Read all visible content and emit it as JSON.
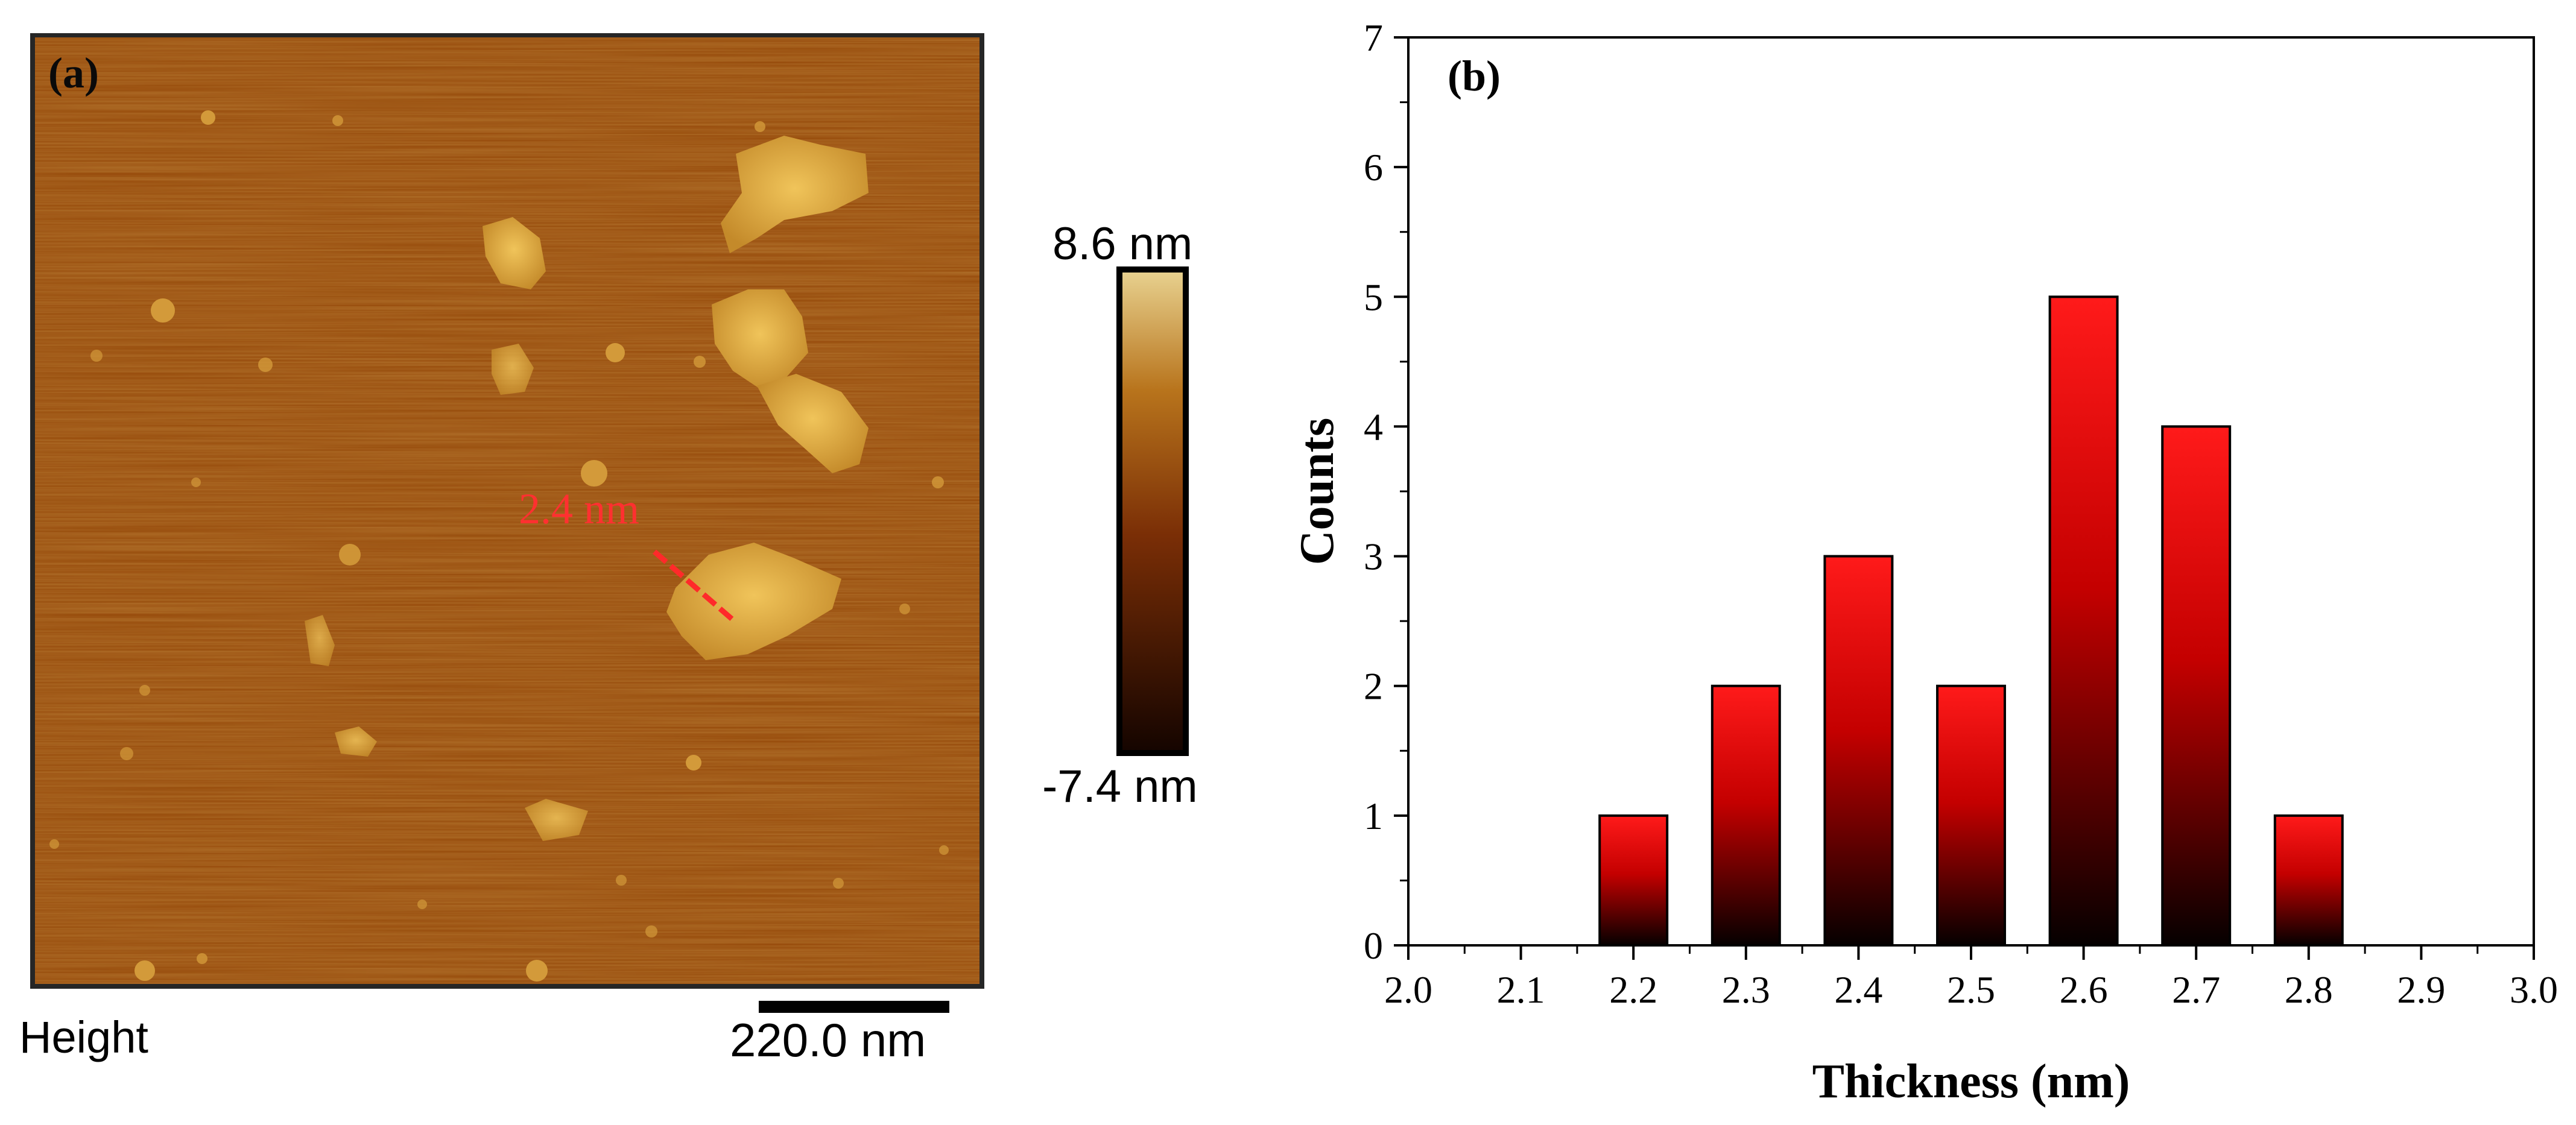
{
  "panel_a": {
    "label": "(a)",
    "channel_label": "Height",
    "scalebar_label": "220.0 nm",
    "measurement_label": "2.4 nm",
    "colorbar_max_label": "8.6 nm",
    "colorbar_min_label": "-7.4 nm",
    "colors": {
      "substrate": "#9a4a08",
      "flake": "#d9a640",
      "measure_line": "#ff2a2a",
      "colorbar_top": "#e8d290",
      "colorbar_bottom": "#140400"
    }
  },
  "chart_data": {
    "type": "bar",
    "panel_label": "(b)",
    "xlabel": "Thickness (nm)",
    "ylabel": "Counts",
    "categories": [
      "2.2",
      "2.3",
      "2.4",
      "2.5",
      "2.6",
      "2.7",
      "2.8"
    ],
    "x": [
      2.2,
      2.3,
      2.4,
      2.5,
      2.6,
      2.7,
      2.8
    ],
    "values": [
      1,
      2,
      3,
      2,
      5,
      4,
      1
    ],
    "xlim": [
      2.0,
      3.0
    ],
    "ylim": [
      0,
      7
    ],
    "xticks": [
      "2.0",
      "2.1",
      "2.2",
      "2.3",
      "2.4",
      "2.5",
      "2.6",
      "2.7",
      "2.8",
      "2.9",
      "3.0"
    ],
    "yticks": [
      "0",
      "1",
      "2",
      "3",
      "4",
      "5",
      "6",
      "7"
    ],
    "bar_color_top": "#ff0000",
    "bar_color_bottom": "#000000",
    "grid": false,
    "legend": false
  }
}
